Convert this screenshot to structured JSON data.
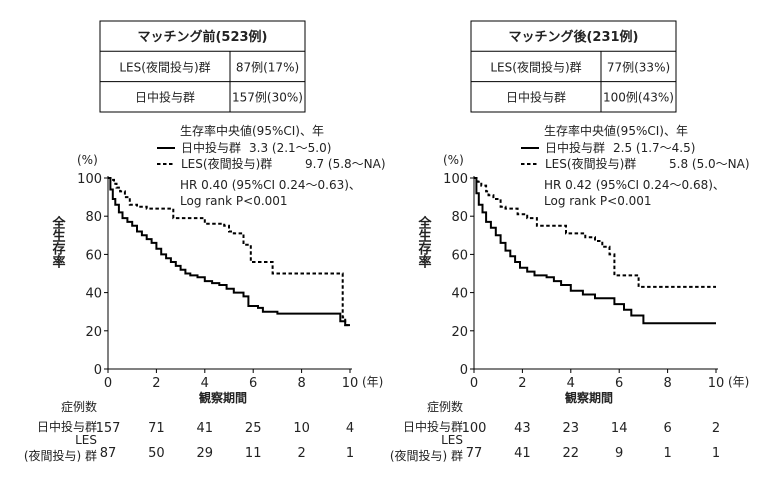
{
  "colors": {
    "text": "#222222",
    "line": "#000000",
    "background": "#ffffff"
  },
  "chart_data": [
    {
      "type": "line",
      "summary_table": {
        "title": "マッチング前(523例)",
        "rows": [
          {
            "label": "LES(夜間投与)群",
            "value": "87例(17%)"
          },
          {
            "label": "日中投与群",
            "value": "157例(30%)"
          }
        ]
      },
      "ylabel": "全生存率",
      "y_unit": "(%)",
      "xlabel": "観察期間",
      "x_unit": "(年)",
      "xlim": [
        0,
        10
      ],
      "ylim": [
        0,
        100
      ],
      "x_ticks": [
        0,
        2,
        4,
        6,
        8,
        10
      ],
      "y_ticks": [
        0,
        20,
        40,
        60,
        80,
        100
      ],
      "grid": false,
      "legend_title": "生存率中央値(95%CI)、年",
      "legend_position": "top-right",
      "annotations": [
        "HR 0.40 (95%CI 0.24～0.63)、",
        "Log rank P<0.001"
      ],
      "series": [
        {
          "name": "日中投与群",
          "median": "3.3 (2.1～5.0)",
          "style": "solid",
          "points": [
            [
              0,
              100
            ],
            [
              0.1,
              94
            ],
            [
              0.2,
              89
            ],
            [
              0.3,
              86
            ],
            [
              0.45,
              82
            ],
            [
              0.6,
              79
            ],
            [
              0.8,
              77
            ],
            [
              1.0,
              75
            ],
            [
              1.2,
              72
            ],
            [
              1.4,
              70
            ],
            [
              1.6,
              68
            ],
            [
              1.8,
              66
            ],
            [
              2.0,
              63
            ],
            [
              2.2,
              60
            ],
            [
              2.4,
              58
            ],
            [
              2.6,
              56
            ],
            [
              2.8,
              54
            ],
            [
              3.0,
              52
            ],
            [
              3.2,
              50
            ],
            [
              3.4,
              49
            ],
            [
              3.7,
              48
            ],
            [
              4.0,
              46
            ],
            [
              4.3,
              45
            ],
            [
              4.6,
              44
            ],
            [
              4.9,
              42
            ],
            [
              5.2,
              40
            ],
            [
              5.6,
              38
            ],
            [
              5.8,
              33
            ],
            [
              6.2,
              32
            ],
            [
              6.4,
              30
            ],
            [
              7.0,
              29
            ],
            [
              8.0,
              29
            ],
            [
              9.5,
              29
            ],
            [
              9.6,
              25
            ],
            [
              9.8,
              23
            ],
            [
              10.0,
              23
            ]
          ]
        },
        {
          "name": "LES(夜間投与)群",
          "median": "9.7 (5.8～NA)",
          "style": "dashed",
          "points": [
            [
              0,
              100
            ],
            [
              0.15,
              99
            ],
            [
              0.25,
              97
            ],
            [
              0.35,
              95
            ],
            [
              0.5,
              93
            ],
            [
              0.7,
              90
            ],
            [
              0.9,
              86
            ],
            [
              1.2,
              85
            ],
            [
              1.6,
              84
            ],
            [
              2.3,
              84
            ],
            [
              2.7,
              79
            ],
            [
              3.8,
              79
            ],
            [
              4.0,
              76
            ],
            [
              4.6,
              76
            ],
            [
              4.8,
              75
            ],
            [
              5.0,
              72
            ],
            [
              5.2,
              71
            ],
            [
              5.6,
              65
            ],
            [
              5.9,
              56
            ],
            [
              6.6,
              56
            ],
            [
              6.8,
              50
            ],
            [
              9.6,
              50
            ],
            [
              9.7,
              27
            ],
            [
              9.8,
              23
            ],
            [
              10.0,
              23
            ]
          ]
        }
      ],
      "risk_table": {
        "header": "症例数",
        "times": [
          0,
          2,
          4,
          6,
          8,
          10
        ],
        "rows": [
          {
            "label": "日中投与群",
            "counts": [
              157,
              71,
              41,
              25,
              10,
              4
            ]
          },
          {
            "label_line1": "LES",
            "label_line2": "(夜間投与) 群",
            "counts": [
              87,
              50,
              29,
              11,
              2,
              1
            ]
          }
        ]
      }
    },
    {
      "type": "line",
      "summary_table": {
        "title": "マッチング後(231例)",
        "rows": [
          {
            "label": "LES(夜間投与)群",
            "value": "77例(33%)"
          },
          {
            "label": "日中投与群",
            "value": "100例(43%)"
          }
        ]
      },
      "ylabel": "全生存率",
      "y_unit": "(%)",
      "xlabel": "観察期間",
      "x_unit": "(年)",
      "xlim": [
        0,
        10
      ],
      "ylim": [
        0,
        100
      ],
      "x_ticks": [
        0,
        2,
        4,
        6,
        8,
        10
      ],
      "y_ticks": [
        0,
        20,
        40,
        60,
        80,
        100
      ],
      "grid": false,
      "legend_title": "生存率中央値(95%CI)、年",
      "legend_position": "top-right",
      "annotations": [
        "HR 0.42 (95%CI 0.24～0.68)、",
        "Log rank P<0.001"
      ],
      "series": [
        {
          "name": "日中投与群",
          "median": "2.5 (1.7～4.5)",
          "style": "solid",
          "points": [
            [
              0,
              100
            ],
            [
              0.1,
              92
            ],
            [
              0.2,
              86
            ],
            [
              0.35,
              82
            ],
            [
              0.5,
              77
            ],
            [
              0.7,
              74
            ],
            [
              0.9,
              70
            ],
            [
              1.1,
              66
            ],
            [
              1.3,
              62
            ],
            [
              1.5,
              59
            ],
            [
              1.7,
              56
            ],
            [
              1.9,
              53
            ],
            [
              2.2,
              51
            ],
            [
              2.5,
              49
            ],
            [
              3.0,
              48
            ],
            [
              3.3,
              46
            ],
            [
              3.6,
              44
            ],
            [
              4.0,
              41
            ],
            [
              4.5,
              39
            ],
            [
              5.0,
              37
            ],
            [
              5.8,
              34
            ],
            [
              6.2,
              31
            ],
            [
              6.5,
              28
            ],
            [
              7.0,
              24
            ],
            [
              8.0,
              24
            ],
            [
              10.0,
              24
            ]
          ]
        },
        {
          "name": "LES(夜間投与)群",
          "median": "5.8 (5.0～NA)",
          "style": "dashed",
          "points": [
            [
              0,
              100
            ],
            [
              0.15,
              98
            ],
            [
              0.3,
              96
            ],
            [
              0.5,
              93
            ],
            [
              0.6,
              91
            ],
            [
              0.8,
              89
            ],
            [
              1.1,
              85
            ],
            [
              1.3,
              84
            ],
            [
              1.8,
              81
            ],
            [
              2.2,
              79
            ],
            [
              2.6,
              75
            ],
            [
              3.6,
              75
            ],
            [
              3.8,
              71
            ],
            [
              4.6,
              69
            ],
            [
              5.0,
              67
            ],
            [
              5.3,
              64
            ],
            [
              5.6,
              60
            ],
            [
              5.8,
              49
            ],
            [
              6.6,
              49
            ],
            [
              6.8,
              43
            ],
            [
              10.0,
              43
            ]
          ]
        }
      ],
      "risk_table": {
        "header": "症例数",
        "times": [
          0,
          2,
          4,
          6,
          8,
          10
        ],
        "rows": [
          {
            "label": "日中投与群",
            "counts": [
              100,
              43,
              23,
              14,
              6,
              2
            ]
          },
          {
            "label_line1": "LES",
            "label_line2": "(夜間投与) 群",
            "counts": [
              77,
              41,
              22,
              9,
              1,
              1
            ]
          }
        ]
      }
    }
  ]
}
